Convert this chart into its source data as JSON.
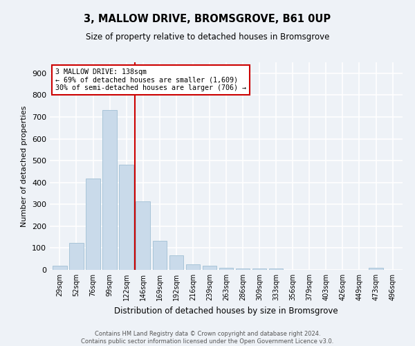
{
  "title_line1": "3, MALLOW DRIVE, BROMSGROVE, B61 0UP",
  "title_line2": "Size of property relative to detached houses in Bromsgrove",
  "xlabel": "Distribution of detached houses by size in Bromsgrove",
  "ylabel": "Number of detached properties",
  "bar_color": "#c9daea",
  "bar_edge_color": "#a8c4d8",
  "categories": [
    "29sqm",
    "52sqm",
    "76sqm",
    "99sqm",
    "122sqm",
    "146sqm",
    "169sqm",
    "192sqm",
    "216sqm",
    "239sqm",
    "263sqm",
    "286sqm",
    "309sqm",
    "333sqm",
    "356sqm",
    "379sqm",
    "403sqm",
    "426sqm",
    "449sqm",
    "473sqm",
    "496sqm"
  ],
  "values": [
    20,
    122,
    418,
    730,
    480,
    315,
    132,
    65,
    25,
    20,
    10,
    5,
    5,
    5,
    0,
    0,
    0,
    0,
    0,
    10,
    0
  ],
  "annotation_line1": "3 MALLOW DRIVE: 138sqm",
  "annotation_line2": "← 69% of detached houses are smaller (1,609)",
  "annotation_line3": "30% of semi-detached houses are larger (706) →",
  "ylim": [
    0,
    950
  ],
  "yticks": [
    0,
    100,
    200,
    300,
    400,
    500,
    600,
    700,
    800,
    900
  ],
  "footer_line1": "Contains HM Land Registry data © Crown copyright and database right 2024.",
  "footer_line2": "Contains public sector information licensed under the Open Government Licence v3.0.",
  "background_color": "#eef2f7",
  "grid_color": "#ffffff",
  "annotation_box_color": "white",
  "annotation_box_edge_color": "#cc0000",
  "vline_color": "#cc0000",
  "vline_x": 4.5
}
